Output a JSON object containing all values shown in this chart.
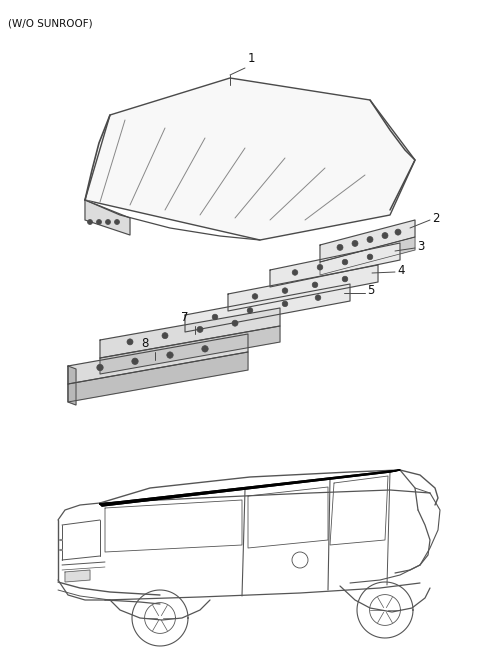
{
  "title": "(W/O SUNROOF)",
  "title_fontsize": 7.5,
  "background_color": "#ffffff",
  "line_color": "#4a4a4a",
  "label_color": "#111111",
  "fig_width": 4.8,
  "fig_height": 6.55,
  "dpi": 100
}
